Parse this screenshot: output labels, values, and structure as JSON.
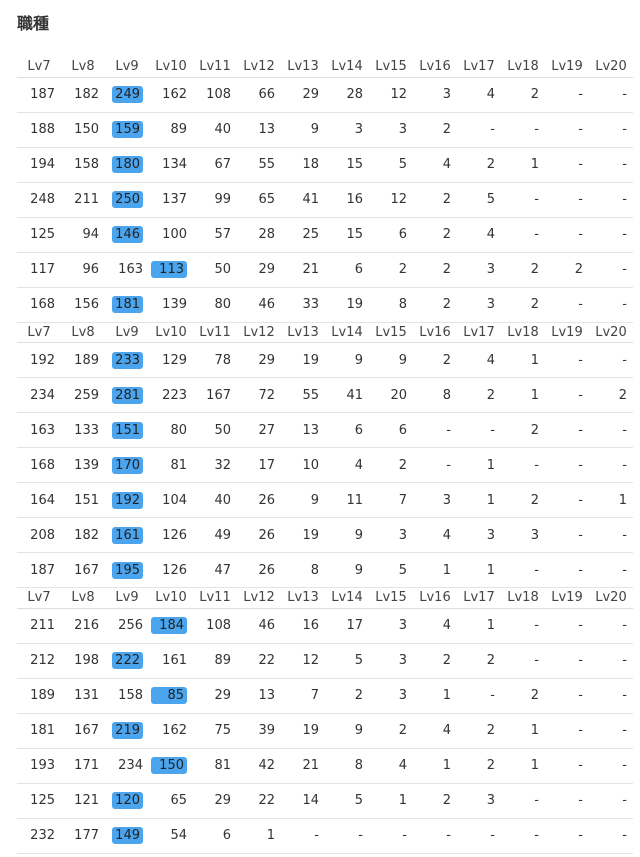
{
  "title": "職種",
  "blocks": [
    {
      "header": [
        "Lv7",
        "Lv8",
        "Lv9",
        "Lv10",
        "Lv11",
        "Lv12",
        "Lv13",
        "Lv14",
        "Lv15",
        "Lv16",
        "Lv17",
        "Lv18",
        "Lv19",
        "Lv20"
      ],
      "rows": [
        {
          "cells": [
            187,
            182,
            249,
            162,
            108,
            66,
            29,
            28,
            12,
            3,
            4,
            2,
            "-",
            "-"
          ],
          "highlight": 2
        },
        {
          "cells": [
            188,
            150,
            159,
            89,
            40,
            13,
            9,
            3,
            3,
            2,
            "-",
            "-",
            "-",
            "-"
          ],
          "highlight": 2
        },
        {
          "cells": [
            194,
            158,
            180,
            134,
            67,
            55,
            18,
            15,
            5,
            4,
            2,
            1,
            "-",
            "-"
          ],
          "highlight": 2
        },
        {
          "cells": [
            248,
            211,
            250,
            137,
            99,
            65,
            41,
            16,
            12,
            2,
            5,
            "-",
            "-",
            "-"
          ],
          "highlight": 2
        },
        {
          "cells": [
            125,
            94,
            146,
            100,
            57,
            28,
            25,
            15,
            6,
            2,
            4,
            "-",
            "-",
            "-"
          ],
          "highlight": 2
        },
        {
          "cells": [
            117,
            96,
            163,
            113,
            50,
            29,
            21,
            6,
            2,
            2,
            3,
            2,
            2,
            "-"
          ],
          "highlight": 3
        },
        {
          "cells": [
            168,
            156,
            181,
            139,
            80,
            46,
            33,
            19,
            8,
            2,
            3,
            2,
            "-",
            "-"
          ],
          "highlight": 2
        }
      ]
    },
    {
      "header": [
        "Lv7",
        "Lv8",
        "Lv9",
        "Lv10",
        "Lv11",
        "Lv12",
        "Lv13",
        "Lv14",
        "Lv15",
        "Lv16",
        "Lv17",
        "Lv18",
        "Lv19",
        "Lv20"
      ],
      "rows": [
        {
          "cells": [
            192,
            189,
            233,
            129,
            78,
            29,
            19,
            9,
            9,
            2,
            4,
            1,
            "-",
            "-"
          ],
          "highlight": 2
        },
        {
          "cells": [
            234,
            259,
            281,
            223,
            167,
            72,
            55,
            41,
            20,
            8,
            2,
            1,
            "-",
            2
          ],
          "highlight": 2
        },
        {
          "cells": [
            163,
            133,
            151,
            80,
            50,
            27,
            13,
            6,
            6,
            "-",
            "-",
            2,
            "-",
            "-"
          ],
          "highlight": 2
        },
        {
          "cells": [
            168,
            139,
            170,
            81,
            32,
            17,
            10,
            4,
            2,
            "-",
            1,
            "-",
            "-",
            "-"
          ],
          "highlight": 2
        },
        {
          "cells": [
            164,
            151,
            192,
            104,
            40,
            26,
            9,
            11,
            7,
            3,
            1,
            2,
            "-",
            1
          ],
          "highlight": 2
        },
        {
          "cells": [
            208,
            182,
            161,
            126,
            49,
            26,
            19,
            9,
            3,
            4,
            3,
            3,
            "-",
            "-"
          ],
          "highlight": 2
        },
        {
          "cells": [
            187,
            167,
            195,
            126,
            47,
            26,
            8,
            9,
            5,
            1,
            1,
            "-",
            "-",
            "-"
          ],
          "highlight": 2
        }
      ]
    },
    {
      "header": [
        "Lv7",
        "Lv8",
        "Lv9",
        "Lv10",
        "Lv11",
        "Lv12",
        "Lv13",
        "Lv14",
        "Lv15",
        "Lv16",
        "Lv17",
        "Lv18",
        "Lv19",
        "Lv20"
      ],
      "rows": [
        {
          "cells": [
            211,
            216,
            256,
            184,
            108,
            46,
            16,
            17,
            3,
            4,
            1,
            "-",
            "-",
            "-"
          ],
          "highlight": 3
        },
        {
          "cells": [
            212,
            198,
            222,
            161,
            89,
            22,
            12,
            5,
            3,
            2,
            2,
            "-",
            "-",
            "-"
          ],
          "highlight": 2
        },
        {
          "cells": [
            189,
            131,
            158,
            85,
            29,
            13,
            7,
            2,
            3,
            1,
            "-",
            2,
            "-",
            "-"
          ],
          "highlight": 3
        },
        {
          "cells": [
            181,
            167,
            219,
            162,
            75,
            39,
            19,
            9,
            2,
            4,
            2,
            1,
            "-",
            "-"
          ],
          "highlight": 2
        },
        {
          "cells": [
            193,
            171,
            234,
            150,
            81,
            42,
            21,
            8,
            4,
            1,
            2,
            1,
            "-",
            "-"
          ],
          "highlight": 3
        },
        {
          "cells": [
            125,
            121,
            120,
            65,
            29,
            22,
            14,
            5,
            1,
            2,
            3,
            "-",
            "-",
            "-"
          ],
          "highlight": 2
        },
        {
          "cells": [
            232,
            177,
            149,
            54,
            6,
            1,
            "-",
            "-",
            "-",
            "-",
            "-",
            "-",
            "-",
            "-"
          ],
          "highlight": 2
        }
      ]
    }
  ]
}
